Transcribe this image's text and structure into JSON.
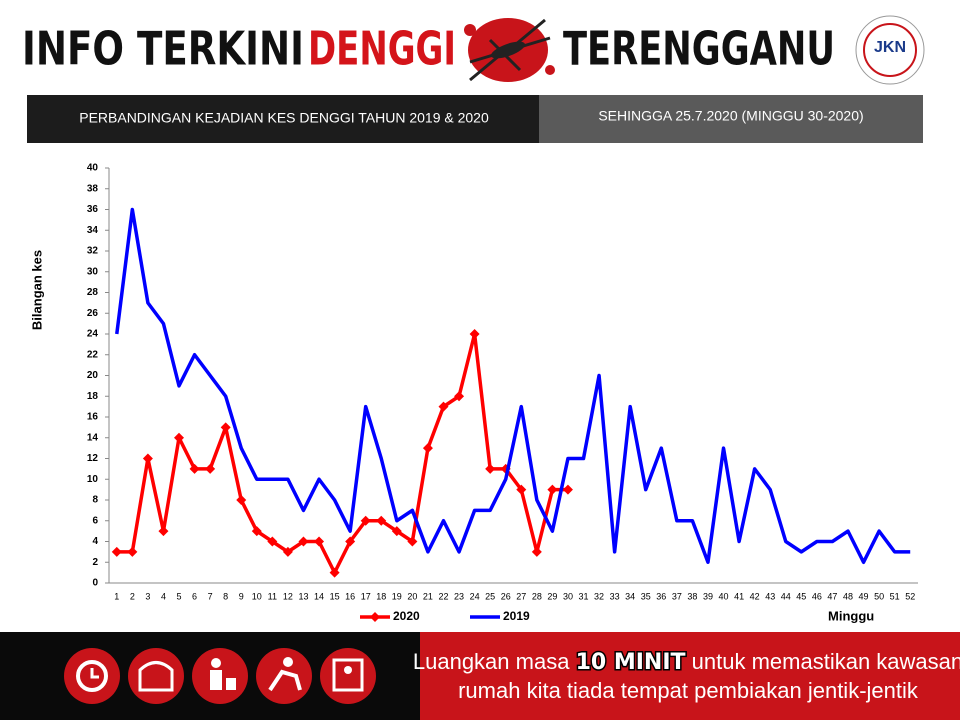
{
  "header": {
    "title_parts": [
      "INFO TERKINI",
      "DENGGI",
      "TERENGGANU"
    ],
    "logo": "JKN"
  },
  "banner": {
    "left": "PERBANDINGAN KEJADIAN KES DENGGI TAHUN 2019 & 2020",
    "right": "SEHINGGA 25.7.2020 (MINGGU  30-2020)"
  },
  "chart_data": {
    "type": "line",
    "ylabel": "Bilangan kes",
    "xlabel": "Minggu",
    "categories": [
      "1",
      "2",
      "3",
      "4",
      "5",
      "6",
      "7",
      "8",
      "9",
      "10",
      "11",
      "12",
      "13",
      "14",
      "15",
      "16",
      "17",
      "18",
      "19",
      "20",
      "21",
      "22",
      "23",
      "24",
      "25",
      "26",
      "27",
      "28",
      "29",
      "30",
      "31",
      "32",
      "33",
      "34",
      "35",
      "36",
      "37",
      "38",
      "39",
      "40",
      "41",
      "42",
      "43",
      "44",
      "45",
      "46",
      "47",
      "48",
      "49",
      "50",
      "51",
      "52"
    ],
    "series": [
      {
        "name": "2020",
        "color": "#ff0000",
        "marker": "diamond",
        "values": [
          3,
          3,
          12,
          5,
          14,
          11,
          11,
          15,
          8,
          5,
          4,
          3,
          4,
          4,
          1,
          4,
          6,
          6,
          5,
          4,
          13,
          17,
          18,
          24,
          11,
          11,
          9,
          3,
          9,
          9,
          null,
          null,
          null,
          null,
          null,
          null,
          null,
          null,
          null,
          null,
          null,
          null,
          null,
          null,
          null,
          null,
          null,
          null,
          null,
          null,
          null,
          null
        ]
      },
      {
        "name": "2019",
        "color": "#0000ff",
        "marker": "none",
        "values": [
          24,
          36,
          27,
          25,
          19,
          22,
          20,
          18,
          13,
          10,
          10,
          10,
          7,
          10,
          8,
          5,
          17,
          12,
          6,
          7,
          3,
          6,
          3,
          7,
          7,
          10,
          17,
          8,
          5,
          12,
          12,
          20,
          3,
          17,
          9,
          13,
          6,
          6,
          2,
          13,
          4,
          11,
          9,
          4,
          3,
          4,
          4,
          5,
          2,
          5,
          3,
          3
        ]
      }
    ],
    "ylim": [
      0,
      40
    ],
    "yticks": [
      0,
      2,
      4,
      6,
      8,
      10,
      12,
      14,
      16,
      18,
      20,
      22,
      24,
      26,
      28,
      30,
      32,
      34,
      36,
      38,
      40
    ],
    "grid": false
  },
  "footer": {
    "message_parts": [
      "Luangkan masa",
      "10 MINIT",
      "untuk memastikan kawasan",
      "rumah kita tiada tempat pembiakan jentik-jentik"
    ]
  }
}
